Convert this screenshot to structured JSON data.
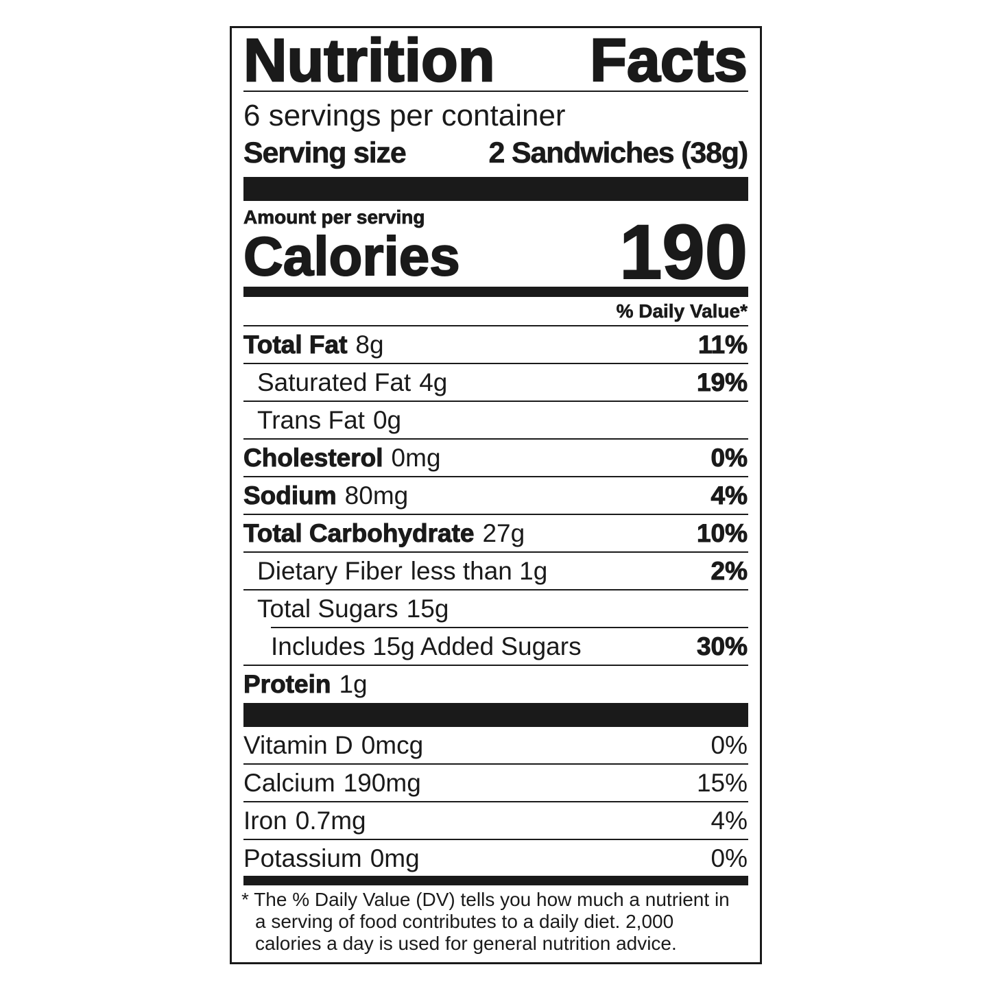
{
  "title_left": "Nutrition",
  "title_right": "Facts",
  "servings_per_container": "6 servings per container",
  "serving_size_label": "Serving size",
  "serving_size_value": "2 Sandwiches (38g)",
  "amount_per_serving": "Amount per serving",
  "calories_label": "Calories",
  "calories_value": "190",
  "daily_value_header": "% Daily Value*",
  "nutrients": [
    {
      "name": "Total Fat",
      "amount": "8g",
      "dv": "11%"
    },
    {
      "name": "Saturated Fat",
      "amount": "4g",
      "dv": "19%"
    },
    {
      "name": "Trans Fat",
      "amount": "0g",
      "dv": ""
    },
    {
      "name": "Cholesterol",
      "amount": "0mg",
      "dv": "0%"
    },
    {
      "name": "Sodium",
      "amount": "80mg",
      "dv": "4%"
    },
    {
      "name": "Total Carbohydrate",
      "amount": "27g",
      "dv": "10%"
    },
    {
      "name": "Dietary Fiber",
      "amount": "less than 1g",
      "dv": "2%"
    },
    {
      "name": "Total Sugars",
      "amount": "15g",
      "dv": ""
    },
    {
      "name": "Includes 15g Added Sugars",
      "amount": "",
      "dv": "30%"
    },
    {
      "name": "Protein",
      "amount": "1g",
      "dv": ""
    }
  ],
  "vitamins": [
    {
      "name": "Vitamin D",
      "amount": "0mcg",
      "dv": "0%"
    },
    {
      "name": "Calcium",
      "amount": "190mg",
      "dv": "15%"
    },
    {
      "name": "Iron",
      "amount": "0.7mg",
      "dv": "4%"
    },
    {
      "name": "Potassium",
      "amount": "0mg",
      "dv": "0%"
    }
  ],
  "footnote": [
    "* The % Daily Value (DV) tells you how much a nutrient in",
    "a serving of food contributes to a daily diet. 2,000",
    "calories a day is used for general nutrition advice."
  ]
}
